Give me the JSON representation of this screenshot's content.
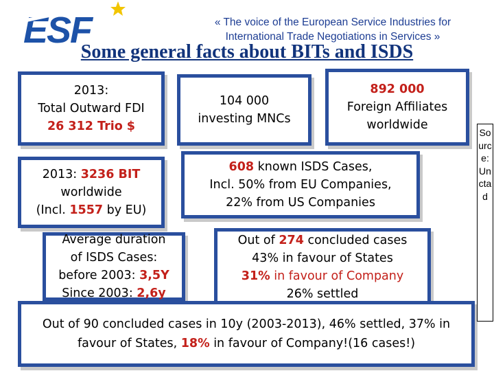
{
  "header": {
    "logo_text": "ESF",
    "tagline_line1": "« The voice of the European Service Industries for",
    "tagline_line2": "International Trade Negotiations in Services »",
    "title": "Some general facts about BITs and ISDS"
  },
  "boxes": {
    "fdi": {
      "line1": "2013:",
      "line2": "Total Outward FDI",
      "value": "26 312 Trio $"
    },
    "mncs": {
      "line1": "104 000",
      "line2": "investing MNCs"
    },
    "affiliates": {
      "value": "892 000",
      "line2": "Foreign Affiliates",
      "line3": "worldwide"
    },
    "bits": {
      "prefix": "2013: ",
      "value": "3236 BIT",
      "line2": "worldwide",
      "line3_pre": "(Incl. ",
      "line3_value": "1557",
      "line3_post": " by EU)"
    },
    "isds": {
      "value": "608",
      "line1_post": " known ISDS Cases,",
      "line2": "Incl. 50% from EU Companies,",
      "line3": "22% from US Companies"
    },
    "duration": {
      "line1": "Average duration",
      "line2": "of ISDS Cases:",
      "line3_pre": "before 2003: ",
      "line3_value": "3,5Y",
      "line4_pre": "Since 2003: ",
      "line4_value": "2,6y"
    },
    "concluded": {
      "line1_pre": "Out of ",
      "line1_value": "274",
      "line1_post": " concluded cases",
      "line2": "43% in favour of States",
      "line3_value": "31%",
      "line3_mid": " in favour of ",
      "line3_value2": "Company",
      "line4": "26% settled"
    },
    "summary": {
      "line1": "Out of 90 concluded cases in 10y (2003-2013), 46% settled, 37% in",
      "line2_pre": "favour of States, ",
      "line2_value": "18%",
      "line2_post": " in favour of Company!(16 cases!)"
    }
  },
  "source": {
    "text": "Source: Unctad"
  },
  "colors": {
    "accent_blue": "#2a4f9e",
    "title_blue": "#12347c",
    "highlight_red": "#c3201a",
    "star_yellow": "#f2c500"
  }
}
